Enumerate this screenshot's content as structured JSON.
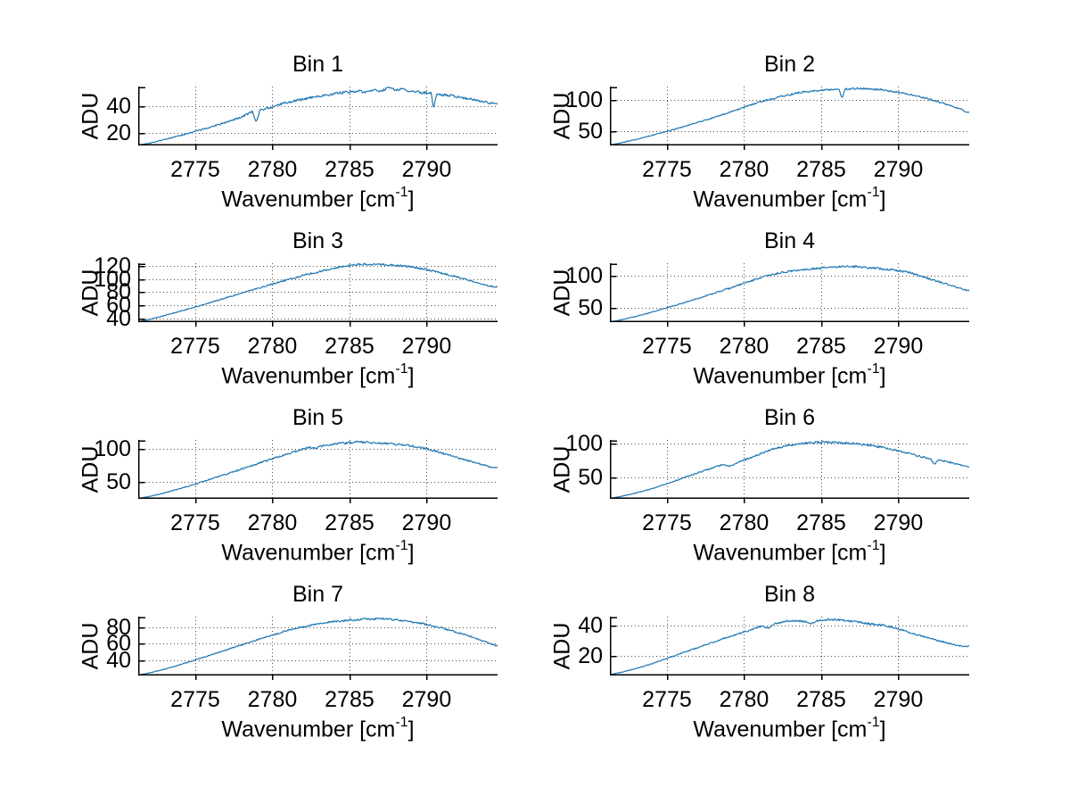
{
  "figure": {
    "background": "#ffffff",
    "line_color": "#1f77b4",
    "grid_color": "#4d4d4d",
    "axis_color": "#000000",
    "text_color": "#000000"
  },
  "labels": {
    "ylabel": "ADU",
    "xlabel_prefix": "Wavenumber [cm",
    "xlabel_sup": "-1",
    "xlabel_suffix": "]"
  },
  "chart_data": [
    {
      "type": "line",
      "title": "Bin 1",
      "ylabel": "ADU",
      "xlabel": "Wavenumber [cm^-1]",
      "grid": true,
      "xlim": [
        2771.3,
        2794.6
      ],
      "ylim": [
        10.7,
        54.7
      ],
      "xticks": [
        2775,
        2780,
        2785,
        2790
      ],
      "yticks": [
        20,
        40
      ],
      "noise": 0.9,
      "keypoints": [
        [
          2771.3,
          11.0
        ],
        [
          2772,
          12.3
        ],
        [
          2773,
          15.0
        ],
        [
          2774,
          18.0
        ],
        [
          2775,
          21.2
        ],
        [
          2776,
          24.5
        ],
        [
          2777,
          28.0
        ],
        [
          2778,
          32.0
        ],
        [
          2778.7,
          36.0
        ],
        [
          2778.95,
          28.5
        ],
        [
          2779.2,
          37.0
        ],
        [
          2780,
          39.5
        ],
        [
          2780.8,
          42.5
        ],
        [
          2781.5,
          44.0
        ],
        [
          2782.5,
          46.5
        ],
        [
          2783.5,
          48.5
        ],
        [
          2784.5,
          50.0
        ],
        [
          2785.5,
          51.5
        ],
        [
          2786,
          50.5
        ],
        [
          2786.5,
          52.5
        ],
        [
          2787,
          51.0
        ],
        [
          2787.5,
          53.5
        ],
        [
          2788,
          52.0
        ],
        [
          2788.5,
          52.5
        ],
        [
          2789,
          51.0
        ],
        [
          2789.5,
          50.5
        ],
        [
          2790.3,
          49.8
        ],
        [
          2790.45,
          38.8
        ],
        [
          2790.65,
          49.0
        ],
        [
          2791.5,
          48.0
        ],
        [
          2792.5,
          46.0
        ],
        [
          2793.5,
          44.0
        ],
        [
          2794.2,
          42.3
        ],
        [
          2794.6,
          42.0
        ]
      ]
    },
    {
      "type": "line",
      "title": "Bin 2",
      "ylabel": "ADU",
      "xlabel": "Wavenumber [cm^-1]",
      "grid": true,
      "xlim": [
        2771.3,
        2794.6
      ],
      "ylim": [
        28,
        120.5
      ],
      "xticks": [
        2775,
        2780,
        2785,
        2790
      ],
      "yticks": [
        50,
        100
      ],
      "noise": 1.3,
      "keypoints": [
        [
          2771.3,
          29.0
        ],
        [
          2772,
          32.0
        ],
        [
          2773,
          37.5
        ],
        [
          2774,
          43.5
        ],
        [
          2775,
          50.0
        ],
        [
          2776,
          57.0
        ],
        [
          2777,
          64.0
        ],
        [
          2778,
          71.5
        ],
        [
          2779,
          79.5
        ],
        [
          2780,
          88.0
        ],
        [
          2781,
          96.0
        ],
        [
          2781.8,
          101.0
        ],
        [
          2782.5,
          105.5
        ],
        [
          2783.2,
          109.0
        ],
        [
          2784,
          112.5
        ],
        [
          2784.8,
          114.5
        ],
        [
          2785.5,
          115.5
        ],
        [
          2786.15,
          116.0
        ],
        [
          2786.35,
          101.0
        ],
        [
          2786.55,
          116.5
        ],
        [
          2787.2,
          117.5
        ],
        [
          2788,
          117.0
        ],
        [
          2788.8,
          115.5
        ],
        [
          2789.5,
          113.5
        ],
        [
          2790.2,
          111.0
        ],
        [
          2791,
          107.0
        ],
        [
          2791.8,
          102.0
        ],
        [
          2792.6,
          96.5
        ],
        [
          2793.4,
          90.5
        ],
        [
          2794.1,
          84.5
        ],
        [
          2794.45,
          79.5
        ],
        [
          2794.6,
          80.0
        ]
      ]
    },
    {
      "type": "line",
      "title": "Bin 3",
      "ylabel": "ADU",
      "xlabel": "Wavenumber [cm^-1]",
      "grid": true,
      "xlim": [
        2771.3,
        2794.6
      ],
      "ylim": [
        34.5,
        124
      ],
      "xticks": [
        2775,
        2780,
        2785,
        2790
      ],
      "yticks": [
        40,
        60,
        80,
        100,
        120
      ],
      "noise": 1.2,
      "keypoints": [
        [
          2771.3,
          35.0
        ],
        [
          2772,
          38.5
        ],
        [
          2773,
          44.5
        ],
        [
          2774,
          51.0
        ],
        [
          2775,
          57.5
        ],
        [
          2776,
          64.5
        ],
        [
          2777,
          71.5
        ],
        [
          2778,
          78.5
        ],
        [
          2779,
          85.5
        ],
        [
          2780,
          92.5
        ],
        [
          2781,
          99.0
        ],
        [
          2782,
          105.5
        ],
        [
          2783,
          111.0
        ],
        [
          2783.8,
          115.5
        ],
        [
          2784.5,
          119.0
        ],
        [
          2785.2,
          121.5
        ],
        [
          2786,
          122.5
        ],
        [
          2787,
          122.0
        ],
        [
          2788,
          121.0
        ],
        [
          2789,
          118.5
        ],
        [
          2790,
          114.5
        ],
        [
          2791,
          109.0
        ],
        [
          2792,
          103.0
        ],
        [
          2793,
          96.5
        ],
        [
          2793.8,
          91.0
        ],
        [
          2794.4,
          88.0
        ],
        [
          2794.6,
          88.5
        ]
      ]
    },
    {
      "type": "line",
      "title": "Bin 4",
      "ylabel": "ADU",
      "xlabel": "Wavenumber [cm^-1]",
      "grid": true,
      "xlim": [
        2771.3,
        2794.6
      ],
      "ylim": [
        27,
        120
      ],
      "xticks": [
        2775,
        2780,
        2785,
        2790
      ],
      "yticks": [
        50,
        100
      ],
      "noise": 1.4,
      "keypoints": [
        [
          2771.3,
          27.5
        ],
        [
          2772,
          30.5
        ],
        [
          2773,
          36.0
        ],
        [
          2774,
          42.5
        ],
        [
          2775,
          49.5
        ],
        [
          2776,
          57.0
        ],
        [
          2777,
          64.5
        ],
        [
          2778,
          72.0
        ],
        [
          2779,
          80.0
        ],
        [
          2780,
          88.5
        ],
        [
          2780.8,
          95.0
        ],
        [
          2781.5,
          100.0
        ],
        [
          2782.3,
          104.5
        ],
        [
          2783,
          107.5
        ],
        [
          2784,
          110.5
        ],
        [
          2785,
          112.5
        ],
        [
          2786,
          114.5
        ],
        [
          2786.8,
          115.5
        ],
        [
          2787.5,
          114.0
        ],
        [
          2788.3,
          112.5
        ],
        [
          2789,
          111.0
        ],
        [
          2790,
          108.5
        ],
        [
          2790.7,
          105.5
        ],
        [
          2791.3,
          101.0
        ],
        [
          2792,
          95.5
        ],
        [
          2792.8,
          89.5
        ],
        [
          2793.6,
          83.5
        ],
        [
          2794.3,
          78.0
        ],
        [
          2794.6,
          76.5
        ]
      ]
    },
    {
      "type": "line",
      "title": "Bin 5",
      "ylabel": "ADU",
      "xlabel": "Wavenumber [cm^-1]",
      "grid": true,
      "xlim": [
        2771.3,
        2794.6
      ],
      "ylim": [
        24,
        113.5
      ],
      "xticks": [
        2775,
        2780,
        2785,
        2790
      ],
      "yticks": [
        50,
        100
      ],
      "noise": 1.4,
      "keypoints": [
        [
          2771.3,
          24.5
        ],
        [
          2772,
          27.5
        ],
        [
          2773,
          33.0
        ],
        [
          2774,
          39.5
        ],
        [
          2775,
          46.5
        ],
        [
          2776,
          54.0
        ],
        [
          2777,
          61.5
        ],
        [
          2778,
          69.0
        ],
        [
          2779,
          77.0
        ],
        [
          2780,
          85.0
        ],
        [
          2780.8,
          91.0
        ],
        [
          2781.5,
          96.0
        ],
        [
          2782,
          99.5
        ],
        [
          2782.4,
          102.0
        ],
        [
          2782.8,
          100.5
        ],
        [
          2783.3,
          105.0
        ],
        [
          2784,
          107.5
        ],
        [
          2785,
          109.5
        ],
        [
          2785.8,
          110.5
        ],
        [
          2786.5,
          109.0
        ],
        [
          2787.3,
          108.5
        ],
        [
          2788,
          107.0
        ],
        [
          2789,
          104.5
        ],
        [
          2789.7,
          101.5
        ],
        [
          2790.4,
          97.5
        ],
        [
          2791.2,
          92.0
        ],
        [
          2792,
          86.5
        ],
        [
          2792.8,
          81.0
        ],
        [
          2793.6,
          76.0
        ],
        [
          2794.3,
          71.5
        ],
        [
          2794.6,
          71.0
        ]
      ]
    },
    {
      "type": "line",
      "title": "Bin 6",
      "ylabel": "ADU",
      "xlabel": "Wavenumber [cm^-1]",
      "grid": true,
      "xlim": [
        2771.3,
        2794.6
      ],
      "ylim": [
        19,
        105
      ],
      "xticks": [
        2775,
        2780,
        2785,
        2790
      ],
      "yticks": [
        50,
        100
      ],
      "noise": 1.3,
      "keypoints": [
        [
          2771.3,
          19.5
        ],
        [
          2772,
          22.5
        ],
        [
          2773,
          27.5
        ],
        [
          2774,
          33.5
        ],
        [
          2775,
          41.0
        ],
        [
          2776,
          49.0
        ],
        [
          2777,
          57.0
        ],
        [
          2778,
          64.5
        ],
        [
          2778.6,
          69.0
        ],
        [
          2779.1,
          66.5
        ],
        [
          2779.6,
          72.5
        ],
        [
          2780,
          75.5
        ],
        [
          2780.6,
          80.5
        ],
        [
          2781.3,
          87.0
        ],
        [
          2782,
          92.5
        ],
        [
          2782.8,
          96.5
        ],
        [
          2783.5,
          99.0
        ],
        [
          2784.3,
          101.0
        ],
        [
          2785,
          102.0
        ],
        [
          2785.8,
          101.5
        ],
        [
          2786.5,
          100.5
        ],
        [
          2787.3,
          99.5
        ],
        [
          2788,
          97.5
        ],
        [
          2789,
          94.0
        ],
        [
          2790,
          89.0
        ],
        [
          2790.8,
          84.5
        ],
        [
          2791.5,
          80.5
        ],
        [
          2792.1,
          77.0
        ],
        [
          2792.35,
          69.5
        ],
        [
          2792.6,
          76.0
        ],
        [
          2793.2,
          73.0
        ],
        [
          2794,
          68.5
        ],
        [
          2794.6,
          66.0
        ]
      ]
    },
    {
      "type": "line",
      "title": "Bin 7",
      "ylabel": "ADU",
      "xlabel": "Wavenumber [cm^-1]",
      "grid": true,
      "xlim": [
        2771.3,
        2794.6
      ],
      "ylim": [
        21.5,
        93
      ],
      "xticks": [
        2775,
        2780,
        2785,
        2790
      ],
      "yticks": [
        40,
        60,
        80
      ],
      "noise": 1.0,
      "keypoints": [
        [
          2771.3,
          22.0
        ],
        [
          2772,
          24.5
        ],
        [
          2773,
          29.0
        ],
        [
          2774,
          34.5
        ],
        [
          2775,
          40.5
        ],
        [
          2776,
          46.5
        ],
        [
          2777,
          52.5
        ],
        [
          2778,
          58.5
        ],
        [
          2779,
          64.5
        ],
        [
          2780,
          70.5
        ],
        [
          2780.8,
          75.0
        ],
        [
          2781.5,
          78.5
        ],
        [
          2782.3,
          82.0
        ],
        [
          2783,
          84.5
        ],
        [
          2784,
          87.0
        ],
        [
          2785,
          88.5
        ],
        [
          2786,
          90.0
        ],
        [
          2787,
          90.5
        ],
        [
          2787.8,
          89.5
        ],
        [
          2788.5,
          88.0
        ],
        [
          2789.3,
          86.0
        ],
        [
          2790,
          83.5
        ],
        [
          2790.8,
          80.0
        ],
        [
          2791.5,
          76.5
        ],
        [
          2792.3,
          72.0
        ],
        [
          2793,
          68.0
        ],
        [
          2793.8,
          62.5
        ],
        [
          2794.3,
          59.0
        ],
        [
          2794.6,
          57.5
        ]
      ]
    },
    {
      "type": "line",
      "title": "Bin 8",
      "ylabel": "ADU",
      "xlabel": "Wavenumber [cm^-1]",
      "grid": true,
      "xlim": [
        2771.3,
        2794.6
      ],
      "ylim": [
        7.5,
        45.5
      ],
      "xticks": [
        2775,
        2780,
        2785,
        2790
      ],
      "yticks": [
        20,
        40
      ],
      "noise": 0.55,
      "keypoints": [
        [
          2771.3,
          8.0
        ],
        [
          2772,
          9.5
        ],
        [
          2773,
          12.0
        ],
        [
          2774,
          15.0
        ],
        [
          2775,
          18.5
        ],
        [
          2776,
          22.0
        ],
        [
          2777,
          25.5
        ],
        [
          2778,
          29.0
        ],
        [
          2779,
          32.5
        ],
        [
          2780,
          35.5
        ],
        [
          2780.7,
          38.0
        ],
        [
          2781.2,
          39.5
        ],
        [
          2781.55,
          38.0
        ],
        [
          2782,
          41.0
        ],
        [
          2782.7,
          42.5
        ],
        [
          2783.4,
          43.0
        ],
        [
          2784.1,
          42.0
        ],
        [
          2784.35,
          40.5
        ],
        [
          2784.7,
          43.0
        ],
        [
          2785.4,
          43.5
        ],
        [
          2786.2,
          43.5
        ],
        [
          2787,
          42.5
        ],
        [
          2787.8,
          41.5
        ],
        [
          2788.4,
          40.5
        ],
        [
          2789,
          40.0
        ],
        [
          2789.6,
          38.5
        ],
        [
          2790.2,
          37.0
        ],
        [
          2790.8,
          35.0
        ],
        [
          2791.5,
          33.0
        ],
        [
          2792.2,
          31.0
        ],
        [
          2793,
          29.0
        ],
        [
          2793.7,
          27.0
        ],
        [
          2794.2,
          26.0
        ],
        [
          2794.6,
          26.5
        ]
      ]
    }
  ]
}
